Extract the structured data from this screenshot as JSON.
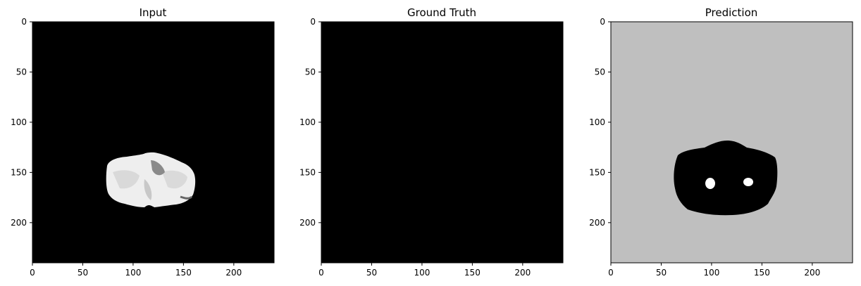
{
  "chart_data": [
    {
      "type": "heatmap",
      "title": "Input",
      "xlabel": "",
      "ylabel": "",
      "xlim": [
        0,
        240
      ],
      "ylim": [
        240,
        0
      ],
      "xticks": [
        0,
        50,
        100,
        150,
        200
      ],
      "yticks": [
        0,
        50,
        100,
        150,
        200
      ],
      "background": "#000000",
      "content": "white cerebellum-shaped region on black background, approx x 75-160, y 130-185"
    },
    {
      "type": "heatmap",
      "title": "Ground Truth",
      "xlabel": "",
      "ylabel": "",
      "xlim": [
        0,
        240
      ],
      "ylim": [
        240,
        0
      ],
      "xticks": [
        0,
        50,
        100,
        150,
        200
      ],
      "yticks": [
        0,
        50,
        100,
        150,
        200
      ],
      "background": "#000000",
      "content": "entirely black"
    },
    {
      "type": "heatmap",
      "title": "Prediction",
      "xlabel": "",
      "ylabel": "",
      "xlim": [
        0,
        240
      ],
      "ylim": [
        240,
        0
      ],
      "xticks": [
        0,
        50,
        100,
        150,
        200
      ],
      "yticks": [
        0,
        50,
        100,
        150,
        200
      ],
      "background": "#bfbfbf",
      "content": "black rounded region approx x 63-165, y 118-195 with two small white spots near (100,160) and (137,159)"
    }
  ],
  "colors": {
    "black": "#000000",
    "white": "#ffffff",
    "gray": "#bfbfbf"
  }
}
